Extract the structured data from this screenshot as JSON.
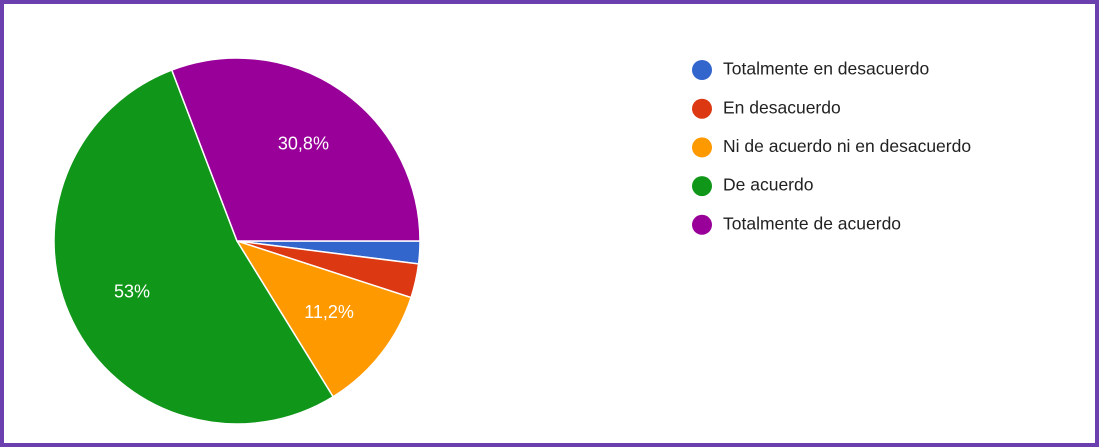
{
  "chart_data": {
    "type": "pie",
    "categories": [
      "Totalmente en desacuerdo",
      "En desacuerdo",
      "Ni de acuerdo ni en desacuerdo",
      "De acuerdo",
      "Totalmente de acuerdo"
    ],
    "values": [
      2,
      3,
      11.2,
      53,
      30.8
    ],
    "value_labels": [
      null,
      null,
      "11,2%",
      "53%",
      "30,8%"
    ],
    "colors": [
      "#3366cc",
      "#dc3912",
      "#ff9900",
      "#109618",
      "#990099"
    ],
    "legend": "right"
  }
}
